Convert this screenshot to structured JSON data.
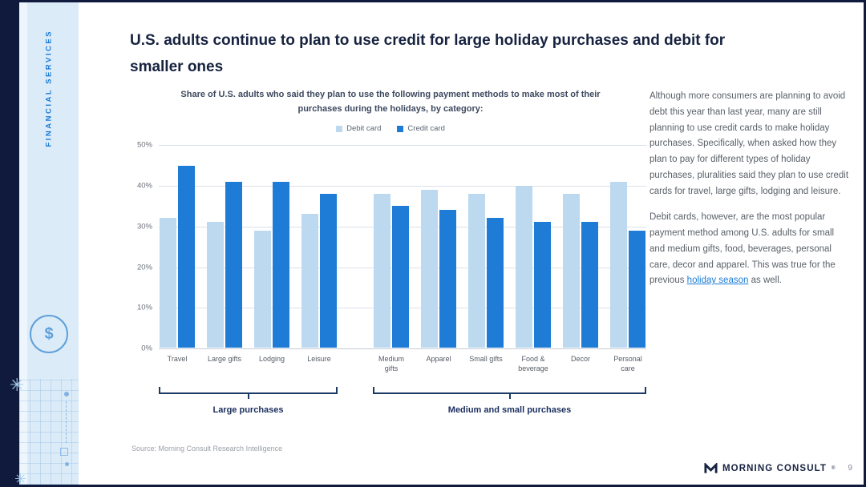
{
  "sidebar": {
    "vertical_label": "FINANCIAL SERVICES",
    "dollar_icon": "$"
  },
  "header": {
    "title": "U.S. adults continue to plan to use credit for large holiday purchases and debit for smaller ones"
  },
  "chart_data": {
    "type": "bar",
    "title": "Share of U.S. adults who said they plan to use the following payment methods to make most of their purchases during the holidays, by category:",
    "legend": [
      {
        "label": "Debit card",
        "color": "#BCD9EF"
      },
      {
        "label": "Credit card",
        "color": "#1E7CD6"
      }
    ],
    "categories": [
      "Travel",
      "Large gifts",
      "Lodging",
      "Leisure",
      "Medium gifts",
      "Apparel",
      "Small gifts",
      "Food & beverage",
      "Decor",
      "Personal care"
    ],
    "series": [
      {
        "name": "Debit card",
        "color": "#BCD9EF",
        "values": [
          32,
          31,
          29,
          33,
          38,
          39,
          38,
          40,
          38,
          41
        ]
      },
      {
        "name": "Credit card",
        "color": "#1E7CD6",
        "values": [
          45,
          41,
          41,
          38,
          35,
          34,
          32,
          31,
          31,
          29
        ]
      }
    ],
    "ylim": [
      0,
      50
    ],
    "yticks": [
      "50%",
      "40%",
      "30%",
      "20%",
      "10%",
      "0%"
    ],
    "grid": "horizontal",
    "legend_position": "top",
    "groups": [
      {
        "label": "Large purchases",
        "count": 4
      },
      {
        "label": "Medium and small purchases",
        "count": 6
      }
    ]
  },
  "commentary": {
    "para1": "Although more consumers are planning to avoid debt this year than last year, many are still planning to use credit cards to make holiday purchases. Specifically, when asked how they plan to pay for different types of holiday purchases, pluralities said they plan to use credit cards for travel, large gifts, lodging and leisure.",
    "para2_before": "Debit cards, however, are the most popular payment method among U.S. adults for small and medium gifts, food, beverages, personal care, decor and apparel. This was true for the previous ",
    "para2_link": "holiday season",
    "para2_after": " as well."
  },
  "source": "Source: Morning Consult Research Intelligence",
  "footer": {
    "brand": "MORNING CONSULT",
    "reg": "®",
    "page_number": "9"
  }
}
